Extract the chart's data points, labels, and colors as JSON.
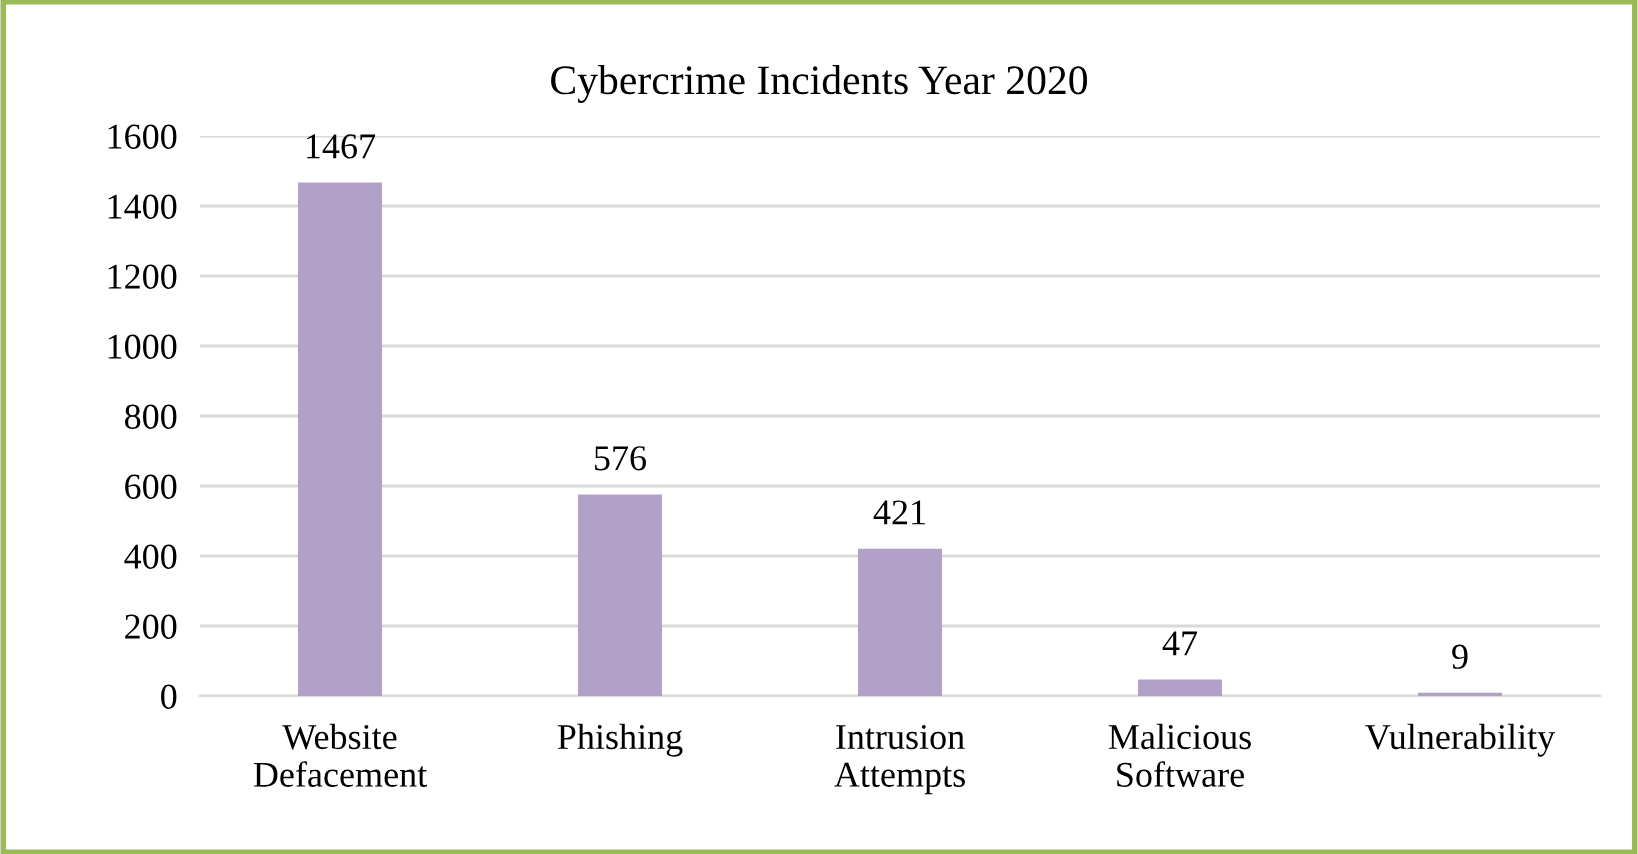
{
  "chart_data": {
    "type": "bar",
    "title": "Cybercrime Incidents Year 2020",
    "categories": [
      "Website\nDefacement",
      "Phishing",
      "Intrusion\nAttempts",
      "Malicious\nSoftware",
      "Vulnerability"
    ],
    "values": [
      1467,
      576,
      421,
      47,
      9
    ],
    "color": "#b1a0c7",
    "ylim": [
      0,
      1600
    ],
    "yticks": [
      0,
      200,
      400,
      600,
      800,
      1000,
      1200,
      1400,
      1600
    ],
    "grid": "y",
    "data_labels": true,
    "legend": false
  }
}
